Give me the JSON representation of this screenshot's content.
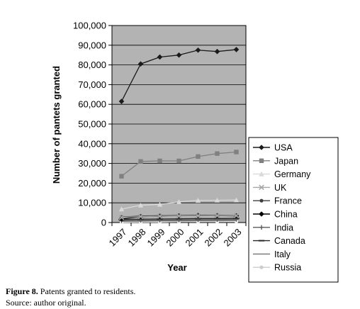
{
  "chart_data": {
    "type": "line",
    "title": "",
    "xlabel": "Year",
    "ylabel": "Number of pantets granted",
    "x": [
      "1997",
      "1998",
      "1999",
      "2000",
      "2001",
      "2002",
      "2003"
    ],
    "ylim": [
      0,
      100000
    ],
    "yticks": [
      "0",
      "10,000",
      "20,000",
      "30,000",
      "40,000",
      "50,000",
      "60,000",
      "70,000",
      "80,000",
      "90,000",
      "100,000"
    ],
    "grid": true,
    "legend": "right",
    "series": [
      {
        "name": "USA",
        "values": [
          61500,
          80500,
          84000,
          85000,
          87500,
          86800,
          87800
        ],
        "color": "#1a1a1a",
        "marker": "diamond"
      },
      {
        "name": "Japan",
        "values": [
          23500,
          31000,
          31300,
          31300,
          33500,
          35000,
          35800
        ],
        "color": "#808080",
        "marker": "square"
      },
      {
        "name": "Germany",
        "values": [
          6800,
          8800,
          9200,
          10500,
          11200,
          11300,
          11400
        ],
        "color": "#d9d9d9",
        "marker": "triangle"
      },
      {
        "name": "UK",
        "values": [
          2600,
          3000,
          3200,
          3300,
          3400,
          3500,
          3500
        ],
        "color": "#a6a6a6",
        "marker": "x"
      },
      {
        "name": "France",
        "values": [
          2800,
          3300,
          3500,
          3600,
          3700,
          3700,
          3600
        ],
        "color": "#404040",
        "marker": "dot"
      },
      {
        "name": "China",
        "values": [
          1800,
          3000,
          3200,
          3400,
          3600,
          3500,
          3400
        ],
        "color": "#000000",
        "marker": "diamond"
      },
      {
        "name": "India",
        "values": [
          900,
          1100,
          1200,
          1300,
          1400,
          1500,
          1600
        ],
        "color": "#595959",
        "marker": "plus"
      },
      {
        "name": "Canada",
        "values": [
          1500,
          1700,
          1800,
          1900,
          2000,
          2000,
          2100
        ],
        "color": "#262626",
        "marker": "dash"
      },
      {
        "name": "Italy",
        "values": [
          600,
          700,
          800,
          800,
          900,
          900,
          1000
        ],
        "color": "#737373",
        "marker": "none"
      },
      {
        "name": "Russia",
        "values": [
          200,
          300,
          300,
          400,
          400,
          400,
          500
        ],
        "color": "#f2f2f2",
        "marker": "dot"
      }
    ]
  },
  "caption": {
    "label": "Figure 8.",
    "text": " Patents granted to residents.",
    "source": "Source: author original."
  }
}
